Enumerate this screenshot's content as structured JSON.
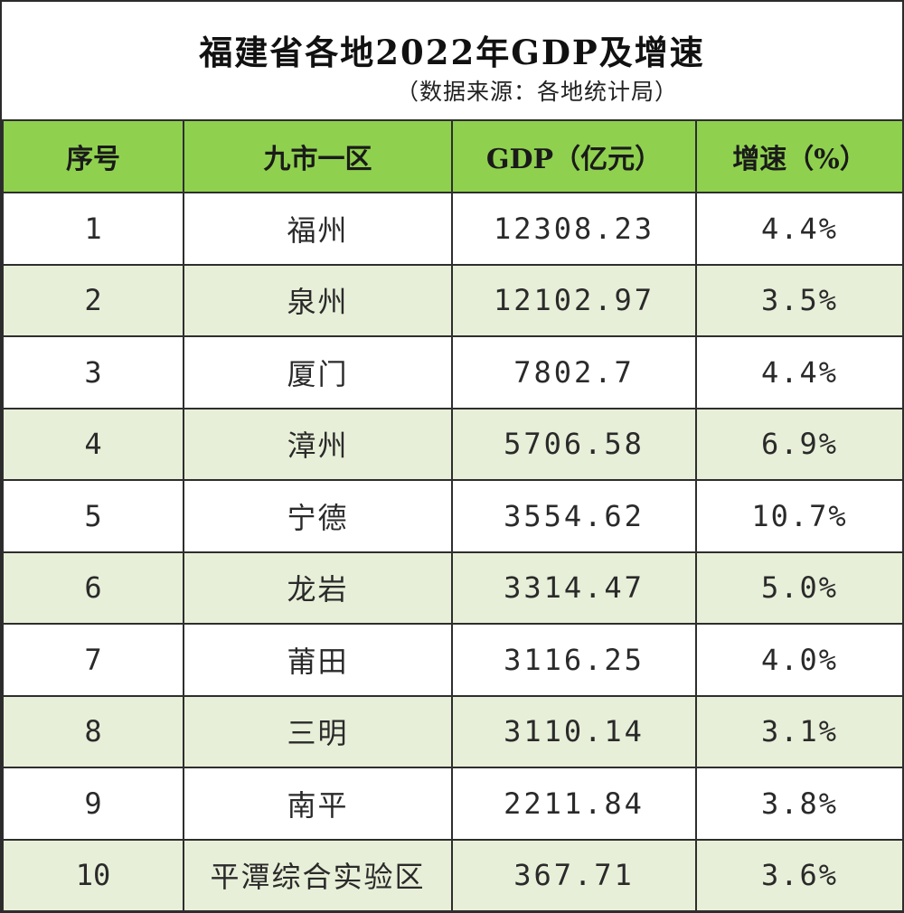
{
  "title": "福建省各地2022年GDP及增速",
  "subtitle": "（数据来源：各地统计局）",
  "headers": {
    "index": "序号",
    "region": "九市一区",
    "gdp": "GDP（亿元）",
    "growth": "增速（%）"
  },
  "rows": [
    {
      "index": "1",
      "region": "福州",
      "gdp": "12308.23",
      "growth": "4.4%"
    },
    {
      "index": "2",
      "region": "泉州",
      "gdp": "12102.97",
      "growth": "3.5%"
    },
    {
      "index": "3",
      "region": "厦门",
      "gdp": "7802.7",
      "growth": "4.4%"
    },
    {
      "index": "4",
      "region": "漳州",
      "gdp": "5706.58",
      "growth": "6.9%"
    },
    {
      "index": "5",
      "region": "宁德",
      "gdp": "3554.62",
      "growth": "10.7%"
    },
    {
      "index": "6",
      "region": "龙岩",
      "gdp": "3314.47",
      "growth": "5.0%"
    },
    {
      "index": "7",
      "region": "莆田",
      "gdp": "3116.25",
      "growth": "4.0%"
    },
    {
      "index": "8",
      "region": "三明",
      "gdp": "3110.14",
      "growth": "3.1%"
    },
    {
      "index": "9",
      "region": "南平",
      "gdp": "2211.84",
      "growth": "3.8%"
    },
    {
      "index": "10",
      "region": "平潭综合实验区",
      "gdp": "367.71",
      "growth": "3.6%"
    }
  ],
  "colors": {
    "header_bg": "#8fd14f",
    "alt_row_bg": "#e7efd8",
    "border": "#2e2e2e"
  }
}
